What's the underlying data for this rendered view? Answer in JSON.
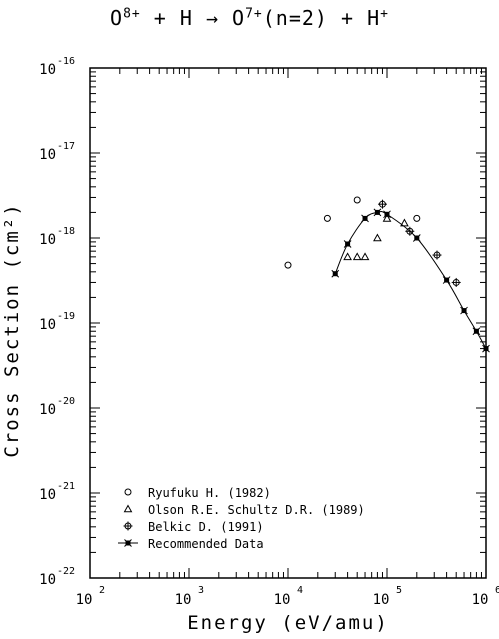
{
  "chart_data": {
    "type": "scatter",
    "title_parts": [
      "O",
      "8+",
      " + H → O",
      "7+",
      "(n=2) + H",
      "+"
    ],
    "xlabel": "Energy (eV/amu)",
    "ylabel": "Cross Section (cm²)",
    "x_scale": "log",
    "y_scale": "log",
    "xlim": [
      100,
      1000000
    ],
    "ylim": [
      1e-22,
      1e-16
    ],
    "x_ticks": [
      {
        "value": 100,
        "base": "10",
        "exp": "2"
      },
      {
        "value": 1000,
        "base": "10",
        "exp": "3"
      },
      {
        "value": 10000,
        "base": "10",
        "exp": "4"
      },
      {
        "value": 100000,
        "base": "10",
        "exp": "5"
      },
      {
        "value": 1000000,
        "base": "10",
        "exp": "6"
      }
    ],
    "y_ticks": [
      {
        "value": 1e-16,
        "base": "10",
        "exp": "-16"
      },
      {
        "value": 1e-17,
        "base": "10",
        "exp": "-17"
      },
      {
        "value": 1e-18,
        "base": "10",
        "exp": "-18"
      },
      {
        "value": 1e-19,
        "base": "10",
        "exp": "-19"
      },
      {
        "value": 1e-20,
        "base": "10",
        "exp": "-20"
      },
      {
        "value": 1e-21,
        "base": "10",
        "exp": "-21"
      },
      {
        "value": 1e-22,
        "base": "10",
        "exp": "-22"
      }
    ],
    "legend_position": "bottom-left",
    "series": [
      {
        "name": "Ryufuku H. (1982)",
        "marker": "circle",
        "x": [
          10000,
          25000,
          50000,
          200000
        ],
        "y": [
          4.8e-19,
          1.7e-18,
          2.8e-18,
          1.7e-18
        ]
      },
      {
        "name": "Olson R.E. Schultz D.R. (1989)",
        "marker": "triangle",
        "x": [
          40000,
          50000,
          60000,
          80000,
          100000,
          150000
        ],
        "y": [
          6e-19,
          6e-19,
          6e-19,
          1e-18,
          1.7e-18,
          1.5e-18
        ]
      },
      {
        "name": "Belkic D. (1991)",
        "marker": "plus-circle",
        "x": [
          90000,
          170000,
          320000,
          500000
        ],
        "y": [
          2.5e-18,
          1.2e-18,
          6.3e-19,
          3e-19
        ]
      },
      {
        "name": "Recommended Data",
        "marker": "x-line",
        "x": [
          30000,
          40000,
          60000,
          80000,
          100000,
          200000,
          400000,
          600000,
          800000,
          1000000
        ],
        "y": [
          3.8e-19,
          8.5e-19,
          1.7e-18,
          2e-18,
          1.9e-18,
          1e-18,
          3.2e-19,
          1.4e-19,
          8e-20,
          5e-20
        ]
      }
    ]
  }
}
